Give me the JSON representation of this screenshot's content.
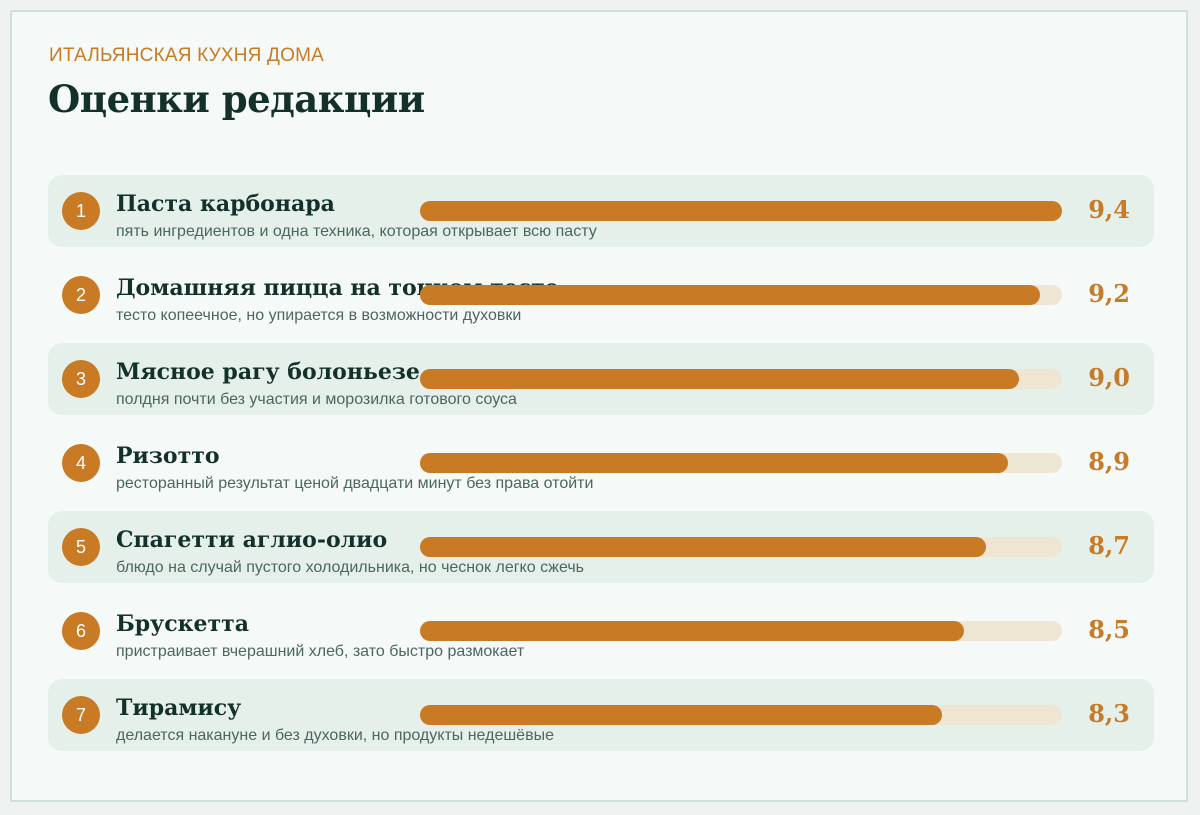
{
  "header": {
    "eyebrow": "ИТАЛЬЯНСКАЯ КУХНЯ ДОМА",
    "title": "Оценки редакции"
  },
  "colors": {
    "accent": "#c87a24",
    "track": "#efe5d3",
    "row_shade": "#e5f0eb",
    "title": "#14302a"
  },
  "chart_data": {
    "type": "bar",
    "orientation": "horizontal",
    "title": "Оценки редакции",
    "xlim": [
      0,
      9.4
    ],
    "rows": [
      {
        "rank": "1",
        "name": "Паста карбонара",
        "description": "пять ингредиентов и одна техника, которая открывает всю пасту",
        "value": 9.4,
        "label": "9,4"
      },
      {
        "rank": "2",
        "name": "Домашняя пицца на тонком тесте",
        "description": "тесто копеечное, но упирается в возможности духовки",
        "value": 9.2,
        "label": "9,2"
      },
      {
        "rank": "3",
        "name": "Мясное рагу болоньезе",
        "description": "полдня почти без участия и морозилка готового соуса",
        "value": 9.0,
        "label": "9,0"
      },
      {
        "rank": "4",
        "name": "Ризотто",
        "description": "ресторанный результат ценой двадцати минут без права отойти",
        "value": 8.9,
        "label": "8,9"
      },
      {
        "rank": "5",
        "name": "Спагетти аглио-олио",
        "description": "блюдо на случай пустого холодильника, но чеснок легко сжечь",
        "value": 8.7,
        "label": "8,7"
      },
      {
        "rank": "6",
        "name": "Брускетта",
        "description": "пристраивает вчерашний хлеб, зато быстро размокает",
        "value": 8.5,
        "label": "8,5"
      },
      {
        "rank": "7",
        "name": "Тирамису",
        "description": "делается накануне и без духовки, но продукты недешёвые",
        "value": 8.3,
        "label": "8,3"
      }
    ]
  }
}
